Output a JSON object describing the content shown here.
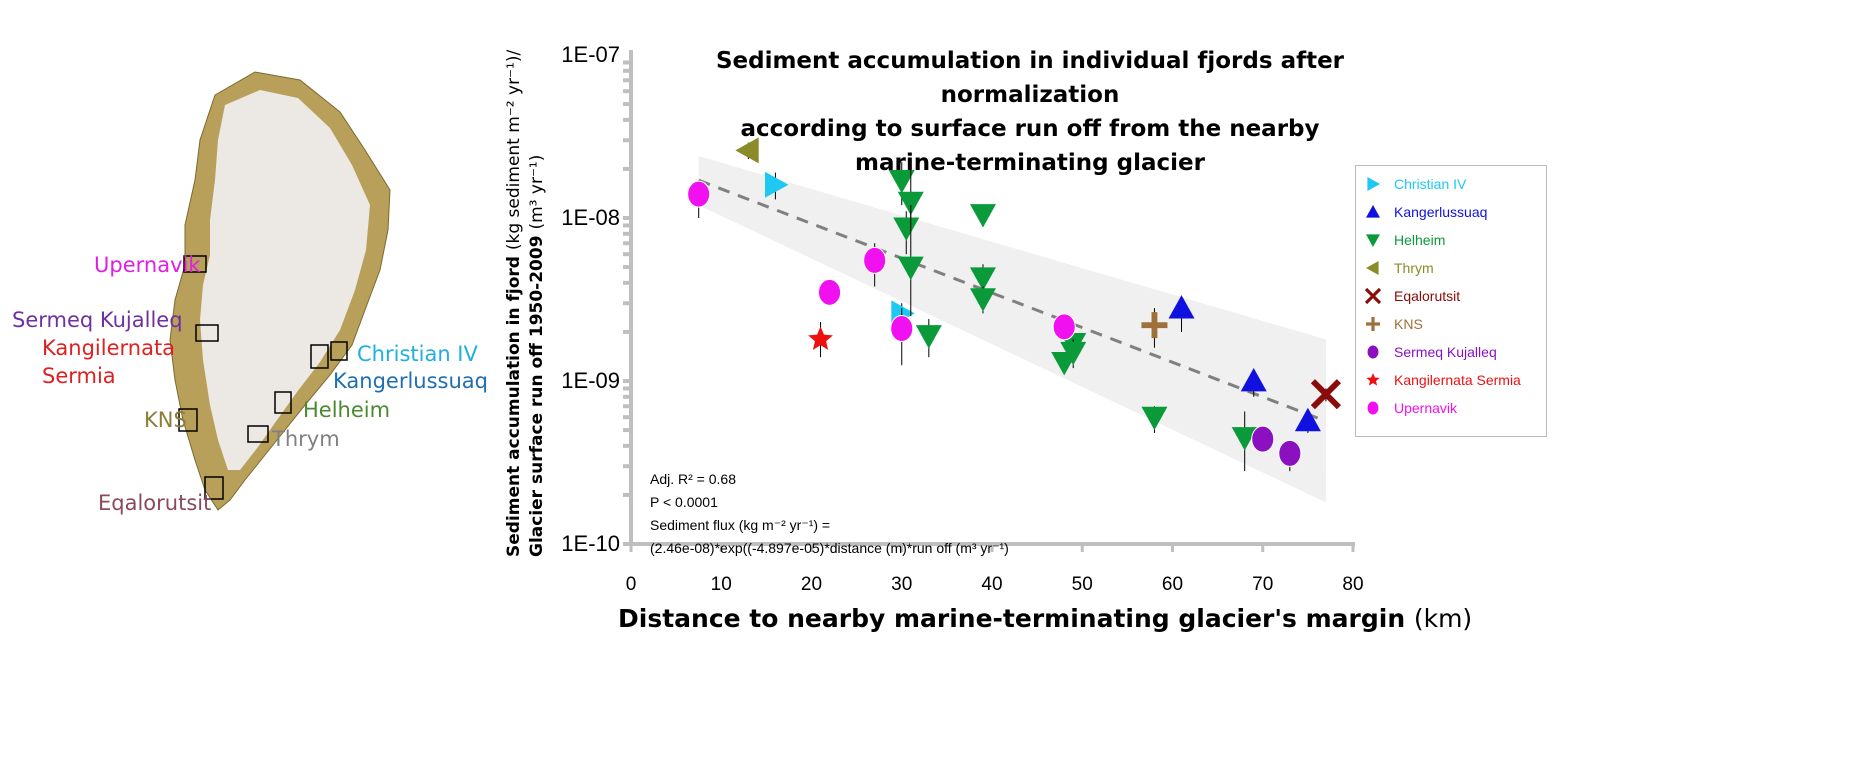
{
  "map": {
    "labels": [
      {
        "text": "Upernavik",
        "color": "#e020e0"
      },
      {
        "text": "Sermeq Kujalleq",
        "color": "#7030a0"
      },
      {
        "text": "Kangilernata",
        "color": "#e02020"
      },
      {
        "text": "Sermia",
        "color": "#e02020"
      },
      {
        "text": "KNS",
        "color": "#8b7d3a"
      },
      {
        "text": "Christian IV",
        "color": "#20b0e0"
      },
      {
        "text": "Kangerlussuaq",
        "color": "#1f6fb0"
      },
      {
        "text": "Helheim",
        "color": "#4a8a30"
      },
      {
        "text": "Thrym",
        "color": "#808080"
      },
      {
        "text": "Eqalorutsit",
        "color": "#8b4a5a"
      }
    ]
  },
  "chart_data": {
    "type": "scatter",
    "title": "Sediment accumulation in individual fjords after normalization according to surface run off from the nearby marine-terminating glacier",
    "title_lines": [
      "Sediment accumulation in individual fjords after normalization",
      "according to surface run off from the nearby",
      "marine-terminating glacier"
    ],
    "xlabel_bold": "Distance to nearby marine-terminating glacier's margin",
    "xlabel_unit": "(km)",
    "ylabel_line1_bold": "Sediment accumulation in fjord",
    "ylabel_line1_unit": "(kg sediment m⁻² yr⁻¹)/",
    "ylabel_line2_bold": "Glacier surface run off 1950-2009",
    "ylabel_line2_unit": "(m³ yr⁻¹)",
    "xlim": [
      0,
      80
    ],
    "ylim": [
      1e-10,
      1e-07
    ],
    "yscale": "log",
    "xticks": [
      "0",
      "10",
      "20",
      "30",
      "40",
      "50",
      "60",
      "70",
      "80"
    ],
    "yticks": [
      "1E-07",
      "1E-08",
      "1E-09",
      "1E-10"
    ],
    "legend_position": "right",
    "series": [
      {
        "name": "Christian IV",
        "marker": "triangle-right",
        "color": "#1ec8f0",
        "points": [
          [
            16,
            1.6e-08,
            1.3e-08,
            1.9e-08
          ],
          [
            30,
            2.6e-09,
            2.2e-09,
            3e-09
          ]
        ]
      },
      {
        "name": "Kangerlussuaq",
        "marker": "triangle-up",
        "color": "#1010e0",
        "points": [
          [
            61,
            2.8e-09,
            2e-09,
            3e-09
          ],
          [
            69,
            1e-09,
            8e-10,
            1.1e-09
          ],
          [
            75,
            5.7e-10,
            4.8e-10,
            6.5e-10
          ]
        ]
      },
      {
        "name": "Helheim",
        "marker": "triangle-down",
        "color": "#0a9a3a",
        "points": [
          [
            30,
            1.7e-08,
            1.2e-08,
            2.2e-08
          ],
          [
            31,
            1.25e-08,
            9e-09,
            2e-08
          ],
          [
            30.5,
            8.7e-09,
            6e-09,
            1.1e-08
          ],
          [
            31,
            5e-09,
            2.5e-09,
            1.2e-08
          ],
          [
            33,
            1.9e-09,
            1.4e-09,
            2.4e-09
          ],
          [
            39,
            1.05e-08,
            1e-08,
            1.1e-08
          ],
          [
            39,
            4.3e-09,
            3.5e-09,
            5.2e-09
          ],
          [
            39,
            3.2e-09,
            2.6e-09,
            3.8e-09
          ],
          [
            48,
            1.3e-09,
            1.1e-09,
            1.5e-09
          ],
          [
            49,
            1.7e-09,
            1.4e-09,
            2e-09
          ],
          [
            49,
            1.5e-09,
            1.2e-09,
            1.8e-09
          ],
          [
            58,
            6e-10,
            4.8e-10,
            7e-10
          ],
          [
            68,
            4.5e-10,
            2.8e-10,
            6.5e-10
          ]
        ]
      },
      {
        "name": "Thrym",
        "marker": "triangle-left",
        "color": "#8b8b2a",
        "points": [
          [
            13,
            2.6e-08,
            2.3e-08,
            2.9e-08
          ]
        ]
      },
      {
        "name": "Eqalorutsit",
        "marker": "x",
        "color": "#8b0a0a",
        "points": [
          [
            77,
            8.3e-10,
            7.5e-10,
            9e-10
          ]
        ]
      },
      {
        "name": "KNS",
        "marker": "plus",
        "color": "#a0703a",
        "points": [
          [
            58,
            2.2e-09,
            1.6e-09,
            2.8e-09
          ]
        ]
      },
      {
        "name": "Sermeq Kujalleq",
        "marker": "circle",
        "color": "#8a10c0",
        "points": [
          [
            70,
            4.4e-10,
            4e-10,
            4.8e-10
          ],
          [
            73,
            3.6e-10,
            2.8e-10,
            4.2e-10
          ]
        ]
      },
      {
        "name": "Kangilernata Sermia",
        "marker": "star",
        "color": "#ee1010",
        "points": [
          [
            21,
            1.8e-09,
            1.4e-09,
            2.3e-09
          ]
        ]
      },
      {
        "name": "Upernavik",
        "marker": "circle",
        "color": "#f010f0",
        "points": [
          [
            7.5,
            1.4e-08,
            1e-08,
            1.7e-08
          ],
          [
            27,
            5.5e-09,
            3.8e-09,
            7e-09
          ],
          [
            22,
            3.5e-09,
            3.3e-09,
            3.7e-09
          ],
          [
            30,
            2.1e-09,
            1.25e-09,
            2.8e-09
          ],
          [
            48,
            2.15e-09,
            2e-09,
            2.3e-09
          ]
        ]
      }
    ],
    "trend": {
      "label": "exponential fit",
      "a": 2.46e-08,
      "b_per_m": -4.897e-05,
      "x_range": [
        7.5,
        77
      ],
      "band_upper": [
        [
          7.5,
          2.4e-08
        ],
        [
          77,
          1.8e-09
        ]
      ],
      "band_lower": [
        [
          7.5,
          1.2e-08
        ],
        [
          77,
          1.8e-10
        ]
      ]
    },
    "annotations": {
      "r2": "Adj. R² = 0.68",
      "p": "P < 0.0001",
      "eq1": "Sediment flux (kg m⁻² yr⁻¹) =",
      "eq2": "(2.46e-08)*exp((-4.897e-05)*distance (m)*run off (m³ yr⁻¹)"
    }
  }
}
